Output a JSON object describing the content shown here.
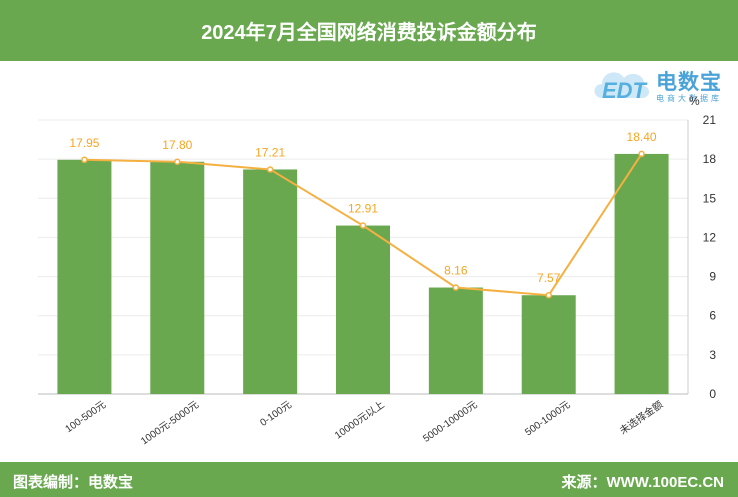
{
  "header": {
    "title": "2024年7月全国网络消费投诉金额分布"
  },
  "footer": {
    "editor": "图表编制：电数宝",
    "source": "来源：WWW.100EC.CN"
  },
  "logo": {
    "brand_cn": "电数宝",
    "brand_en": "EDT",
    "tagline": "电商大数据库"
  },
  "chart_data": {
    "type": "bar",
    "categories": [
      "100-500元",
      "1000元-5000元",
      "0-100元",
      "10000元以上",
      "5000-10000元",
      "500-1000元",
      "未选择金额"
    ],
    "values": [
      17.95,
      17.8,
      17.21,
      12.91,
      8.16,
      7.57,
      18.4
    ],
    "value_labels": [
      "17.95",
      "17.80",
      "17.21",
      "12.91",
      "8.16",
      "7.57",
      "18.40"
    ],
    "ylabel": "%",
    "ylim": [
      0,
      21
    ],
    "yticks": [
      0,
      3,
      6,
      9,
      12,
      15,
      18,
      21
    ],
    "y_axis_side": "right",
    "grid": true,
    "overlay_line": true,
    "colors": {
      "bar": "#69a84f",
      "line": "#f5b042",
      "label": "#f5a623"
    }
  }
}
